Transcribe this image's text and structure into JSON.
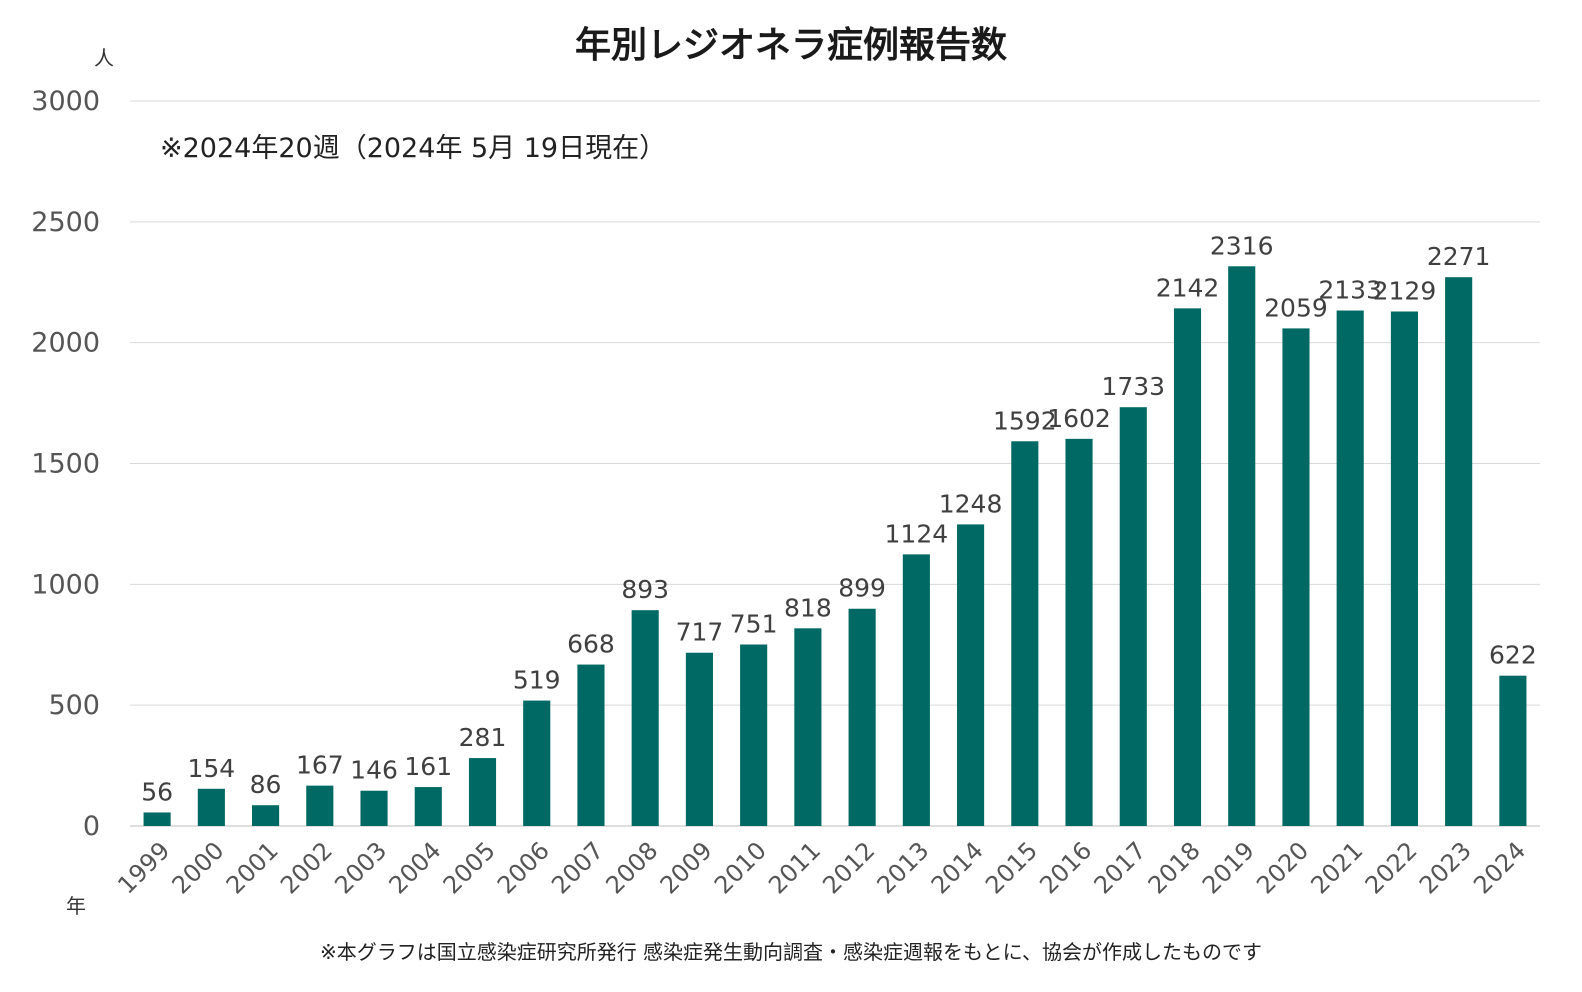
{
  "chart_data": {
    "type": "bar",
    "title": "年別レジオネラ症例報告数",
    "ylabel": "人",
    "xlabel": "年",
    "annotation": "※2024年20週（2024年 5月 19日現在）",
    "footnote": "※本グラフは国立感染症研究所発行 感染症発生動向調査・感染症週報をもとに、協会が作成したものです",
    "ylim": [
      0,
      3000
    ],
    "yticks": [
      0,
      500,
      1000,
      1500,
      2000,
      2500,
      3000
    ],
    "grid": true,
    "bar_color": "#006963",
    "categories": [
      "1999",
      "2000",
      "2001",
      "2002",
      "2003",
      "2004",
      "2005",
      "2006",
      "2007",
      "2008",
      "2009",
      "2010",
      "2011",
      "2012",
      "2013",
      "2014",
      "2015",
      "2016",
      "2017",
      "2018",
      "2019",
      "2020",
      "2021",
      "2022",
      "2023",
      "2024"
    ],
    "values": [
      56,
      154,
      86,
      167,
      146,
      161,
      281,
      519,
      668,
      893,
      717,
      751,
      818,
      899,
      1124,
      1248,
      1592,
      1602,
      1733,
      2142,
      2316,
      2059,
      2133,
      2129,
      2271,
      622
    ]
  }
}
